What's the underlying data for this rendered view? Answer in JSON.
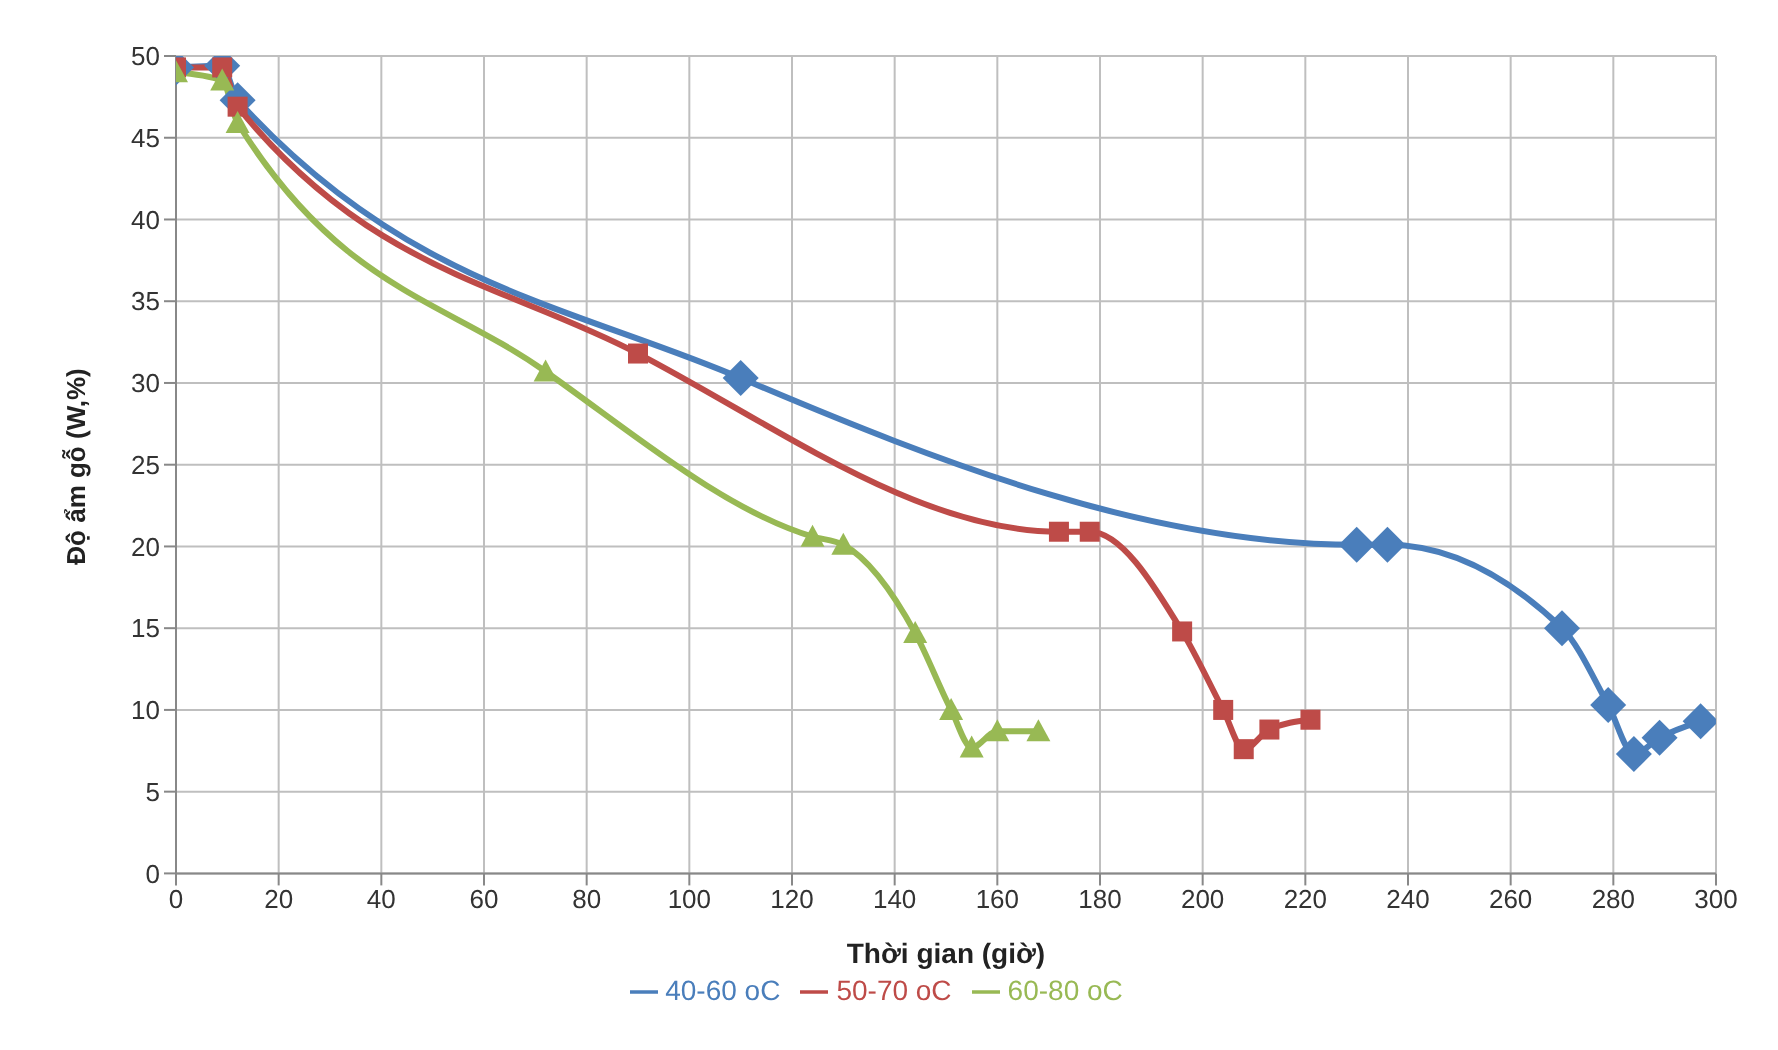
{
  "chart_data": {
    "type": "line",
    "xlabel": "Thời gian (giờ)",
    "ylabel": "Độ ẩm gỗ (W,%)",
    "xlim": [
      0,
      300
    ],
    "xticks": [
      0,
      20,
      40,
      60,
      80,
      100,
      120,
      140,
      160,
      180,
      200,
      220,
      240,
      260,
      280,
      300
    ],
    "ylim": [
      0,
      50
    ],
    "yticks": [
      0,
      5,
      10,
      15,
      20,
      25,
      30,
      35,
      40,
      45,
      50
    ],
    "grid": true,
    "legend": "bottom",
    "series": [
      {
        "name": "40-60 oC",
        "color": "#4a7ebb",
        "marker": "diamond",
        "x": [
          0,
          9,
          12,
          110,
          230,
          236,
          270,
          279,
          284,
          289,
          297
        ],
        "values": [
          49.3,
          49.4,
          47.3,
          30.3,
          20.1,
          20.1,
          15,
          10.3,
          7.3,
          8.3,
          9.3
        ]
      },
      {
        "name": "50-70 oC",
        "color": "#be4b48",
        "marker": "square",
        "x": [
          0,
          9,
          12,
          90,
          172,
          178,
          196,
          204,
          208,
          213,
          221
        ],
        "values": [
          49.3,
          49.3,
          46.9,
          31.8,
          20.9,
          20.9,
          14.8,
          10,
          7.6,
          8.8,
          9.4
        ]
      },
      {
        "name": "60-80 oC",
        "color": "#98b954",
        "marker": "triangle",
        "x": [
          0,
          9,
          12,
          72,
          124,
          130,
          144,
          151,
          155,
          160,
          168
        ],
        "values": [
          49,
          48.5,
          45.9,
          30.7,
          20.6,
          20.1,
          14.7,
          10,
          7.7,
          8.7,
          8.7
        ]
      }
    ]
  }
}
